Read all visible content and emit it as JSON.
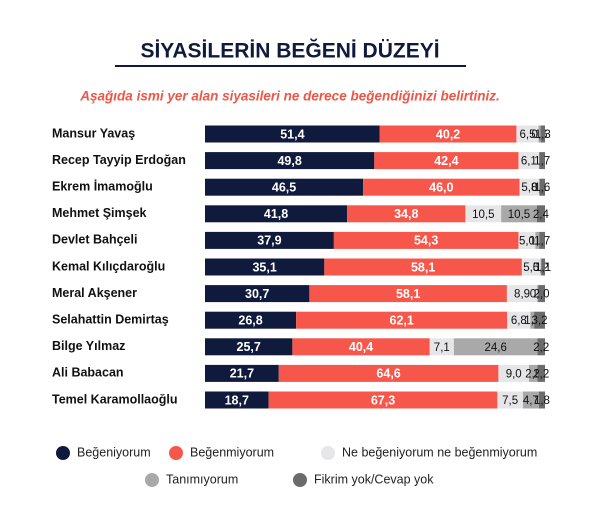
{
  "chart_data": {
    "type": "stacked-bar-horizontal",
    "title": "SİYASİLERİN BEĞENİ DÜZEYİ",
    "subtitle": "Aşağıda ismi yer alan siyasileri ne derece beğendiğinizi belirtiniz.",
    "categories": [
      "Mansur Yavaş",
      "Recep Tayyip Erdoğan",
      "Ekrem İmamoğlu",
      "Mehmet Şimşek",
      "Devlet Bahçeli",
      "Kemal Kılıçdaroğlu",
      "Meral Akşener",
      "Selahattin Demirtaş",
      "Bilge Yılmaz",
      "Ali Babacan",
      "Temel Karamollaoğlu"
    ],
    "series": [
      {
        "name": "Beğeniyorum",
        "color": "#0f1a3c",
        "values": [
          51.4,
          49.8,
          46.5,
          41.8,
          37.9,
          35.1,
          30.7,
          26.8,
          25.7,
          21.7,
          18.7
        ],
        "value_labels": [
          "51,4",
          "49,8",
          "46,5",
          "41,8",
          "37,9",
          "35,1",
          "30,7",
          "26,8",
          "25,7",
          "21,7",
          "18,7"
        ]
      },
      {
        "name": "Beğenmiyorum",
        "color": "#f7564a",
        "values": [
          40.2,
          42.4,
          46.0,
          34.8,
          54.3,
          58.1,
          58.1,
          62.1,
          40.4,
          64.6,
          67.3
        ],
        "value_labels": [
          "40,2",
          "42,4",
          "46,0",
          "34,8",
          "54,3",
          "58,1",
          "58,1",
          "62,1",
          "40,4",
          "64,6",
          "67,3"
        ]
      },
      {
        "name": "Ne beğeniyorum ne beğenmiyorum",
        "color": "#e6e6e8",
        "values": [
          6.5,
          6.1,
          5.8,
          10.5,
          5.0,
          5.5,
          8.9,
          6.8,
          7.1,
          9.0,
          7.5
        ],
        "value_labels": [
          "6,5",
          "6,1",
          "5,8",
          "10,5",
          "5,0",
          "5,5",
          "8,9",
          "6,8",
          "7,1",
          "9,0",
          "7,5"
        ]
      },
      {
        "name": "Tanımıyorum",
        "color": "#a9a9a9",
        "values": [
          0.6,
          0,
          0.1,
          10.5,
          1.1,
          0.2,
          0.3,
          1.1,
          24.6,
          2.5,
          4.7
        ],
        "value_labels": [
          "0,6",
          null,
          "0,1",
          "10,5",
          "1,1",
          "0,2",
          "0,3",
          "1,1",
          "24,6",
          "2,5",
          "4,7"
        ]
      },
      {
        "name": "Fikrim yok/Cevap yok",
        "color": "#6b6b6b",
        "values": [
          1.3,
          1.7,
          1.6,
          2.4,
          1.7,
          1.1,
          2.0,
          3.2,
          2.2,
          2.2,
          1.8
        ],
        "value_labels": [
          "1,3",
          "1,7",
          "1,6",
          "2,4",
          "1,7",
          "1,1",
          "2,0",
          "3,2",
          "2,2",
          "2,2",
          "1,8"
        ]
      }
    ]
  }
}
